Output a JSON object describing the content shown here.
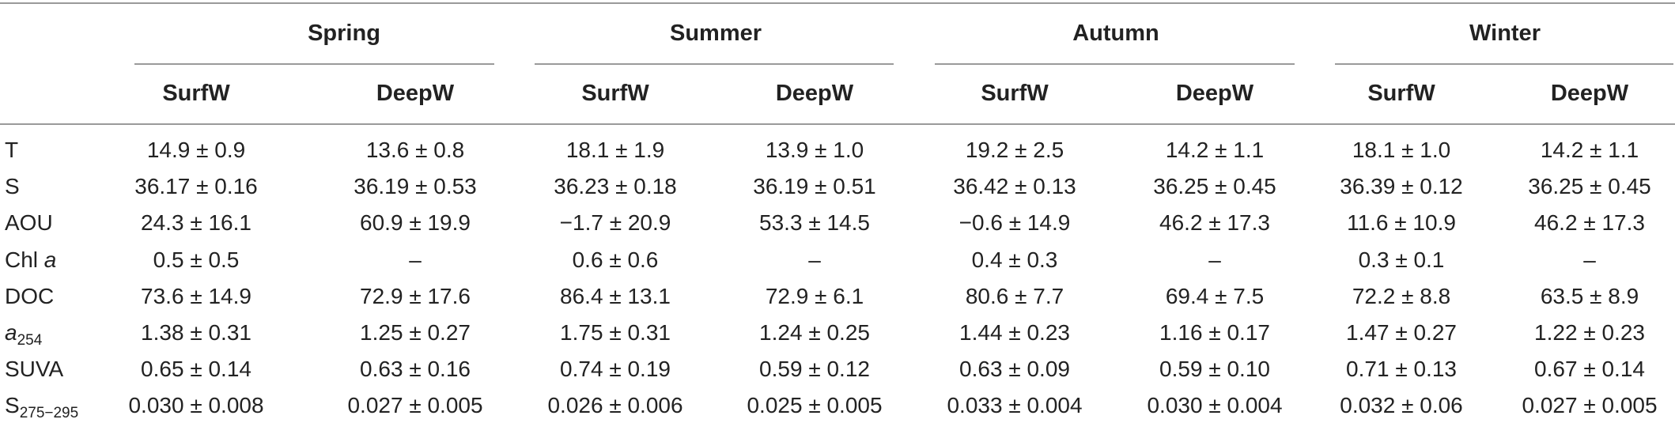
{
  "seasons": [
    "Spring",
    "Summer",
    "Autumn",
    "Winter"
  ],
  "subheaders": [
    "SurfW",
    "DeepW",
    "SurfW",
    "DeepW",
    "SurfW",
    "DeepW",
    "SurfW",
    "DeepW"
  ],
  "rows": [
    {
      "label_main": "T",
      "label_ital": "",
      "label_sub": "",
      "values": [
        "14.9 ± 0.9",
        "13.6 ± 0.8",
        "18.1 ± 1.9",
        "13.9 ± 1.0",
        "19.2 ± 2.5",
        "14.2 ± 1.1",
        "18.1 ± 1.0",
        "14.2 ± 1.1"
      ]
    },
    {
      "label_main": "S",
      "label_ital": "",
      "label_sub": "",
      "values": [
        "36.17 ± 0.16",
        "36.19 ± 0.53",
        "36.23 ± 0.18",
        "36.19 ± 0.51",
        "36.42 ± 0.13",
        "36.25 ± 0.45",
        "36.39 ± 0.12",
        "36.25 ± 0.45"
      ]
    },
    {
      "label_main": "AOU",
      "label_ital": "",
      "label_sub": "",
      "values": [
        "24.3 ± 16.1",
        "60.9 ± 19.9",
        "−1.7 ± 20.9",
        "53.3 ± 14.5",
        "−0.6 ± 14.9",
        "46.2 ± 17.3",
        "11.6 ± 10.9",
        "46.2 ± 17.3"
      ]
    },
    {
      "label_main": "Chl ",
      "label_ital": "a",
      "label_sub": "",
      "values": [
        "0.5 ± 0.5",
        "–",
        "0.6 ± 0.6",
        "–",
        "0.4 ± 0.3",
        "–",
        "0.3 ± 0.1",
        "–"
      ]
    },
    {
      "label_main": "DOC",
      "label_ital": "",
      "label_sub": "",
      "values": [
        "73.6 ± 14.9",
        "72.9 ± 17.6",
        "86.4 ± 13.1",
        "72.9 ± 6.1",
        "80.6 ± 7.7",
        "69.4 ± 7.5",
        "72.2 ± 8.8",
        "63.5 ± 8.9"
      ]
    },
    {
      "label_main": "",
      "label_ital": "a",
      "label_sub": "254",
      "values": [
        "1.38 ± 0.31",
        "1.25 ± 0.27",
        "1.75 ± 0.31",
        "1.24 ± 0.25",
        "1.44 ± 0.23",
        "1.16 ± 0.17",
        "1.47 ± 0.27",
        "1.22 ± 0.23"
      ]
    },
    {
      "label_main": "SUVA",
      "label_ital": "",
      "label_sub": "",
      "values": [
        "0.65 ± 0.14",
        "0.63 ± 0.16",
        "0.74 ± 0.19",
        "0.59 ± 0.12",
        "0.63 ± 0.09",
        "0.59 ± 0.10",
        "0.71 ± 0.13",
        "0.67 ± 0.14"
      ]
    },
    {
      "label_main": "S",
      "label_ital": "",
      "label_sub": "275−295",
      "values": [
        "0.030 ± 0.008",
        "0.027 ± 0.005",
        "0.026 ± 0.006",
        "0.025 ± 0.005",
        "0.033 ± 0.004",
        "0.030 ± 0.004",
        "0.032 ± 0.06",
        "0.027 ± 0.005"
      ]
    }
  ]
}
